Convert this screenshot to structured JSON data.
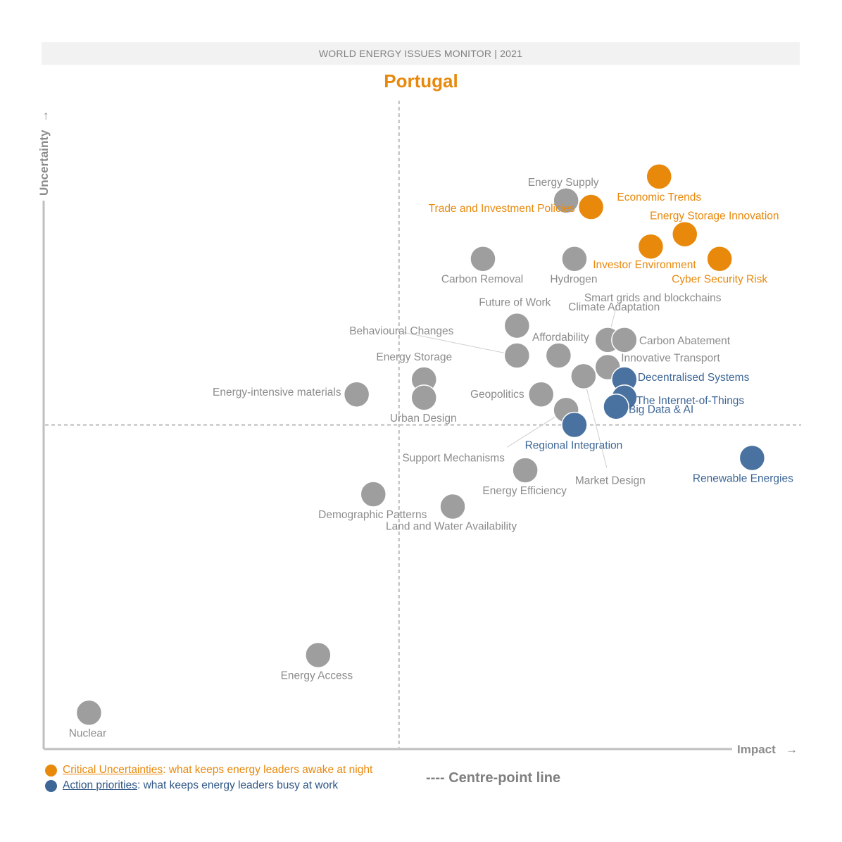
{
  "header": {
    "title": "WORLD ENERGY ISSUES MONITOR | 2021"
  },
  "chart_data": {
    "type": "scatter",
    "title": "Portugal",
    "xlabel": "Impact",
    "ylabel": "Uncertainty",
    "xlim": [
      0,
      100
    ],
    "ylim": [
      0,
      100
    ],
    "centre_point": {
      "x": 47,
      "y": 50
    },
    "colors": {
      "critical": "#e8890c",
      "action": "#4a72a0",
      "other": "#9e9e9e"
    },
    "points": [
      {
        "label": "Economic Trends",
        "x": 81.4,
        "y": 88.3,
        "category": "critical"
      },
      {
        "label": "Energy Supply",
        "x": 69.1,
        "y": 84.6,
        "category": "other"
      },
      {
        "label": "Trade and Investment Policies",
        "x": 72.4,
        "y": 83.6,
        "category": "critical"
      },
      {
        "label": "Energy Storage Innovation",
        "x": 84.8,
        "y": 79.4,
        "category": "critical"
      },
      {
        "label": "Investor Environment",
        "x": 80.3,
        "y": 77.5,
        "category": "critical"
      },
      {
        "label": "Cyber Security Risk",
        "x": 89.4,
        "y": 75.6,
        "category": "critical"
      },
      {
        "label": "Carbon Removal",
        "x": 58.1,
        "y": 75.6,
        "category": "other"
      },
      {
        "label": "Hydrogen",
        "x": 70.2,
        "y": 75.6,
        "category": "other"
      },
      {
        "label": "Future of Work",
        "x": 62.6,
        "y": 65.3,
        "category": "other"
      },
      {
        "label": "Behavioural Changes",
        "x": 62.6,
        "y": 60.7,
        "category": "other"
      },
      {
        "label": "Affordability",
        "x": 68.1,
        "y": 60.7,
        "category": "other"
      },
      {
        "label": "Climate Adaptation",
        "x": 74.6,
        "y": 63.1,
        "category": "other"
      },
      {
        "label": "Smart grids and blockchains",
        "x": 74.6,
        "y": 63.1,
        "category": "other"
      },
      {
        "label": "Carbon Abatement",
        "x": 76.8,
        "y": 63.1,
        "category": "other"
      },
      {
        "label": "Innovative Transport",
        "x": 74.6,
        "y": 58.9,
        "category": "other"
      },
      {
        "label": "Decentralised Systems",
        "x": 76.8,
        "y": 57.0,
        "category": "action"
      },
      {
        "label": "The Internet-of-Things",
        "x": 76.8,
        "y": 54.2,
        "category": "action"
      },
      {
        "label": "Big Data & AI",
        "x": 75.7,
        "y": 52.8,
        "category": "action"
      },
      {
        "label": "Energy Storage",
        "x": 50.3,
        "y": 57.0,
        "category": "other"
      },
      {
        "label": "Urban Design",
        "x": 50.3,
        "y": 54.2,
        "category": "other"
      },
      {
        "label": "Energy-intensive materials",
        "x": 41.4,
        "y": 54.7,
        "category": "other"
      },
      {
        "label": "Geopolitics",
        "x": 65.8,
        "y": 54.7,
        "category": "other"
      },
      {
        "label": "Market Design",
        "x": 71.4,
        "y": 57.5,
        "category": "other"
      },
      {
        "label": "Support Mechanisms",
        "x": 69.1,
        "y": 52.3,
        "category": "other"
      },
      {
        "label": "Regional Integration",
        "x": 70.2,
        "y": 50.0,
        "category": "action"
      },
      {
        "label": "Renewable Energies",
        "x": 93.7,
        "y": 44.9,
        "category": "action"
      },
      {
        "label": "Energy Efficiency",
        "x": 63.7,
        "y": 43.0,
        "category": "other"
      },
      {
        "label": "Demographic Patterns",
        "x": 43.6,
        "y": 39.3,
        "category": "other"
      },
      {
        "label": "Land and Water Availability",
        "x": 54.1,
        "y": 37.4,
        "category": "other"
      },
      {
        "label": "Energy Access",
        "x": 36.3,
        "y": 14.5,
        "category": "other"
      },
      {
        "label": "Nuclear",
        "x": 6.0,
        "y": 5.6,
        "category": "other"
      }
    ]
  },
  "legend": {
    "critical_key": "Critical Uncertainties",
    "critical_text": ": what keeps energy leaders awake at night",
    "action_key": "Action priorities",
    "action_text": ": what keeps energy leaders busy at work",
    "centre_line": "---- Centre-point line"
  }
}
